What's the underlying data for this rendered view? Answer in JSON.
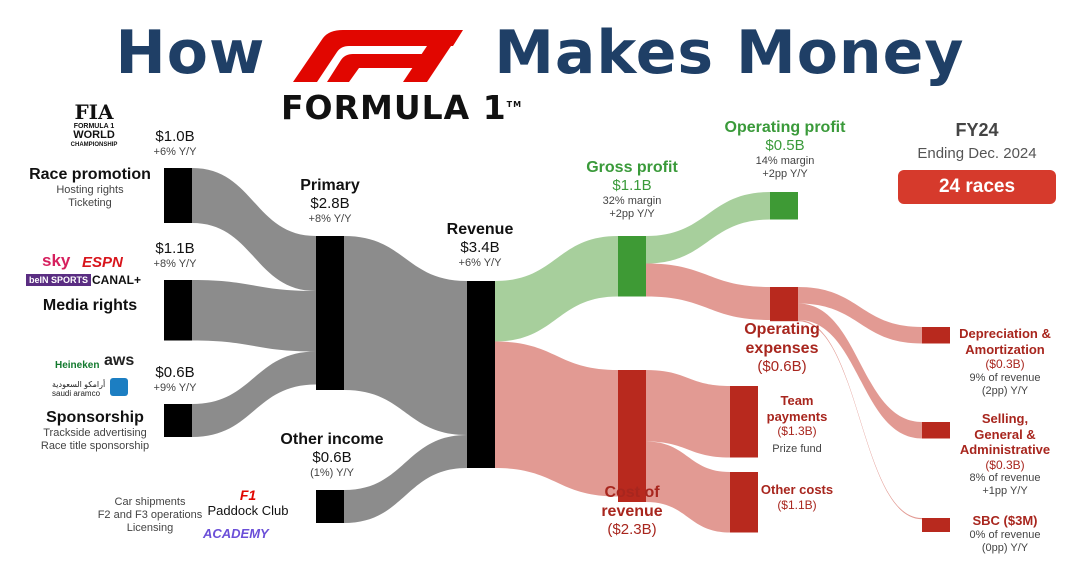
{
  "header": {
    "title_left": "How",
    "title_right": "Makes Money",
    "brand": "FORMULA 1",
    "brand_tm": "TM"
  },
  "period": {
    "fy": "FY24",
    "ending": "Ending Dec. 2024",
    "races": "24 races"
  },
  "logos": {
    "fia_lines": [
      "FIA",
      "FORMULA 1",
      "WORLD",
      "CHAMPIONSHIP"
    ],
    "sky": "sky",
    "espn": "ESPN",
    "bein": "beIN SPORTS",
    "canal": "CANAL+",
    "heineken": "Heineken",
    "aws": "aws",
    "aramco_ar": "أرامكو السعودية",
    "aramco_en": "saudi aramco",
    "paddock": "Paddock Club",
    "academy": "ACADEMY"
  },
  "nodes": {
    "race_promotion": {
      "value": "$1.0B",
      "growth": "+6% Y/Y",
      "title": "Race promotion",
      "sub1": "Hosting rights",
      "sub2": "Ticketing"
    },
    "media_rights": {
      "value": "$1.1B",
      "growth": "+8% Y/Y",
      "title": "Media rights"
    },
    "sponsorship": {
      "value": "$0.6B",
      "growth": "+9% Y/Y",
      "title": "Sponsorship",
      "sub1": "Trackside advertising",
      "sub2": "Race title sponsorship"
    },
    "primary": {
      "title": "Primary",
      "value": "$2.8B",
      "growth": "+8% Y/Y"
    },
    "other_income": {
      "title": "Other income",
      "value": "$0.6B",
      "growth": "(1%) Y/Y",
      "sub1": "Car shipments",
      "sub2": "F2 and F3 operations",
      "sub3": "Licensing"
    },
    "revenue": {
      "title": "Revenue",
      "value": "$3.4B",
      "growth": "+6% Y/Y"
    },
    "gross_profit": {
      "title": "Gross profit",
      "value": "$1.1B",
      "margin": "32% margin",
      "growth": "+2pp Y/Y"
    },
    "operating_profit": {
      "title": "Operating profit",
      "value": "$0.5B",
      "margin": "14% margin",
      "growth": "+2pp Y/Y"
    },
    "operating_expenses": {
      "title1": "Operating",
      "title2": "expenses",
      "value": "($0.6B)"
    },
    "cost_of_revenue": {
      "title1": "Cost of",
      "title2": "revenue",
      "value": "($2.3B)"
    },
    "team_payments": {
      "title1": "Team",
      "title2": "payments",
      "value": "($1.3B)",
      "sub": "Prize fund"
    },
    "other_costs": {
      "title": "Other costs",
      "value": "($1.1B)"
    },
    "dna": {
      "title1": "Depreciation &",
      "title2": "Amortization",
      "value": "($0.3B)",
      "pct": "9% of revenue",
      "growth": "(2pp) Y/Y"
    },
    "sga": {
      "title1": "Selling,",
      "title2": "General &",
      "title3": "Administrative",
      "value": "($0.3B)",
      "pct": "8% of revenue",
      "growth": "+1pp Y/Y"
    },
    "sbc": {
      "title": "SBC ($3M)",
      "pct": "0% of revenue",
      "growth": "(0pp) Y/Y"
    }
  },
  "chart_data": {
    "type": "sankey",
    "unit": "$B",
    "nodes": [
      "Race promotion",
      "Media rights",
      "Sponsorship",
      "Primary",
      "Other income",
      "Revenue",
      "Gross profit",
      "Cost of revenue",
      "Operating profit",
      "Operating expenses",
      "Team payments",
      "Other costs",
      "Depreciation & Amortization",
      "Selling, General & Administrative",
      "SBC"
    ],
    "links": [
      {
        "source": "Race promotion",
        "target": "Primary",
        "value": 1.0
      },
      {
        "source": "Media rights",
        "target": "Primary",
        "value": 1.1
      },
      {
        "source": "Sponsorship",
        "target": "Primary",
        "value": 0.6
      },
      {
        "source": "Primary",
        "target": "Revenue",
        "value": 2.8
      },
      {
        "source": "Other income",
        "target": "Revenue",
        "value": 0.6
      },
      {
        "source": "Revenue",
        "target": "Gross profit",
        "value": 1.1
      },
      {
        "source": "Revenue",
        "target": "Cost of revenue",
        "value": 2.3
      },
      {
        "source": "Gross profit",
        "target": "Operating profit",
        "value": 0.5
      },
      {
        "source": "Gross profit",
        "target": "Operating expenses",
        "value": 0.6
      },
      {
        "source": "Cost of revenue",
        "target": "Team payments",
        "value": 1.3
      },
      {
        "source": "Cost of revenue",
        "target": "Other costs",
        "value": 1.1
      },
      {
        "source": "Operating expenses",
        "target": "Depreciation & Amortization",
        "value": 0.3
      },
      {
        "source": "Operating expenses",
        "target": "Selling, General & Administrative",
        "value": 0.3
      },
      {
        "source": "Operating expenses",
        "target": "SBC",
        "value": 0.003
      }
    ],
    "colors": {
      "input": "#8c8c8c",
      "profit": "#a7cf9c",
      "cost": "#e29a93",
      "profit_node": "#3e9a35",
      "cost_node": "#b8291e",
      "input_node": "#000000",
      "accent": "#d63a2c",
      "title": "#1f3f66"
    }
  }
}
